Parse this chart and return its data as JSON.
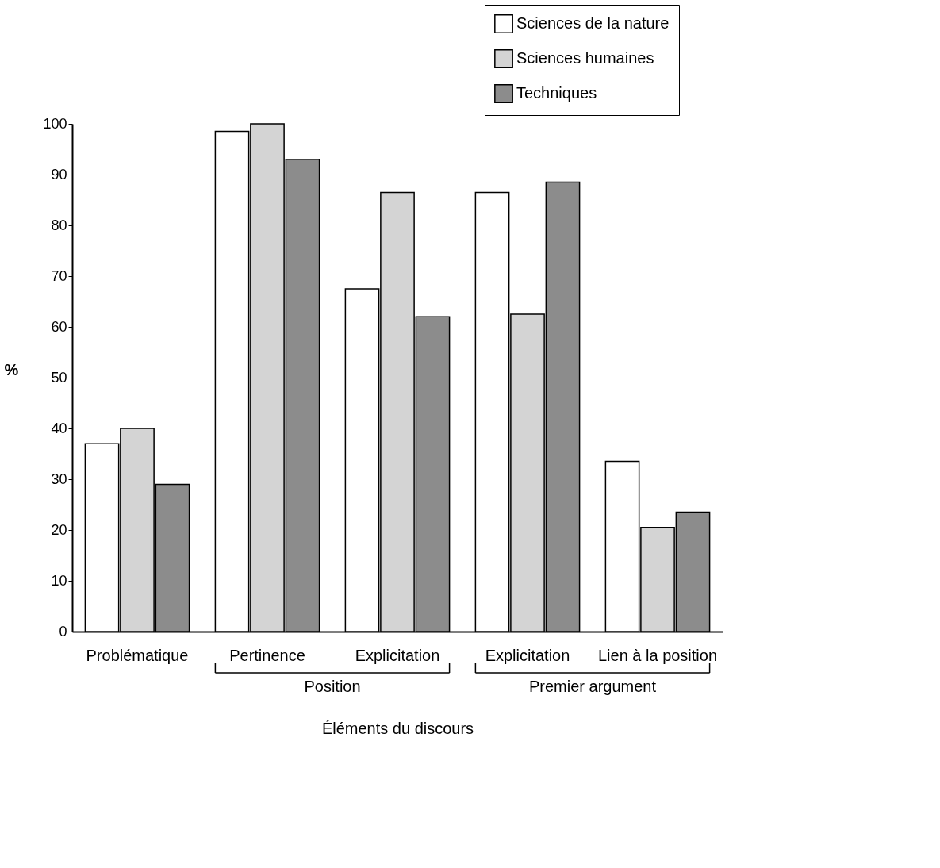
{
  "chart_data": {
    "type": "bar",
    "xlabel": "Éléments du discours",
    "ylabel": "%",
    "categories": [
      "Problématique",
      "Pertinence",
      "Explicitation",
      "Explicitation",
      "Lien à la position"
    ],
    "series": [
      {
        "name": "Sciences de la nature",
        "color": "#ffffff",
        "values": [
          37,
          98.5,
          67.5,
          86.5,
          33.5
        ]
      },
      {
        "name": "Sciences humaines",
        "color": "#d4d4d4",
        "values": [
          40,
          100,
          86.5,
          62.5,
          20.5
        ]
      },
      {
        "name": "Techniques",
        "color": "#8c8c8c",
        "values": [
          29,
          93,
          62,
          88.5,
          23.5
        ]
      }
    ],
    "ylim": [
      0,
      100
    ],
    "yticks": [
      0,
      10,
      20,
      30,
      40,
      50,
      60,
      70,
      80,
      90,
      100
    ],
    "grid": false,
    "legend": "top right",
    "annotations": [
      "Position",
      "Premier argument"
    ]
  }
}
